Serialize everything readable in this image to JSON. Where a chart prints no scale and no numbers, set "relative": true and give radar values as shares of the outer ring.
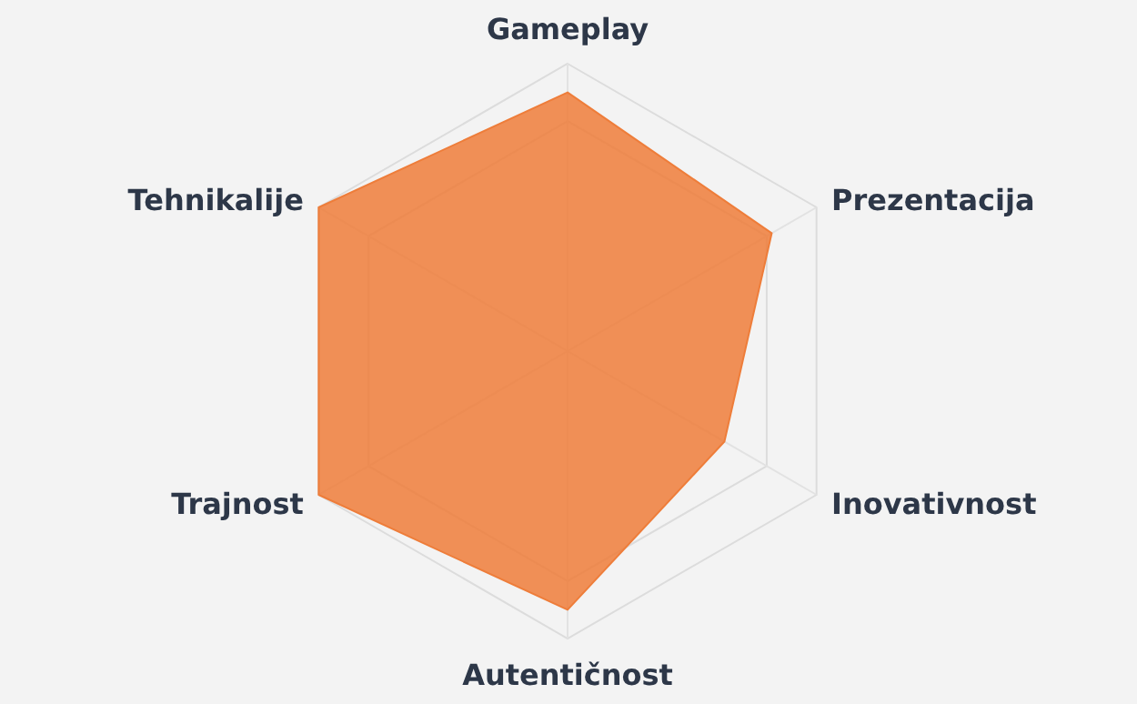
{
  "chart_data": {
    "type": "radar",
    "relative": true,
    "grid": true,
    "categories": [
      "Gameplay",
      "Prezentacija",
      "Inovativnost",
      "Autentičnost",
      "Trajnost",
      "Tehnikalije"
    ],
    "series": [
      {
        "color": "#ee7d3a",
        "values": [
          0.9,
          0.82,
          0.63,
          0.9,
          1,
          1
        ]
      }
    ]
  }
}
